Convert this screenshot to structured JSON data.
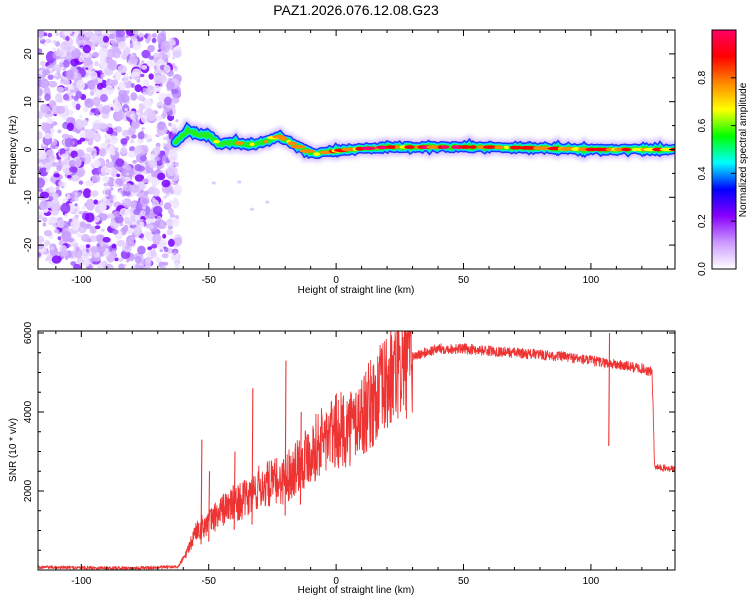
{
  "page_title": "PAZ1.2026.076.12.08.G23",
  "chart_data": [
    {
      "type": "heatmap",
      "title": "PAZ1.2026.076.12.08.G23",
      "xlabel": "Height of straight line (km)",
      "ylabel": "Frequency (Hz)",
      "xlim": [
        -117,
        133
      ],
      "ylim": [
        -25,
        25
      ],
      "x_ticks": [
        -100,
        -50,
        0,
        50,
        100
      ],
      "y_ticks": [
        -20,
        -10,
        0,
        10,
        20
      ],
      "noise_region_x": [
        -117,
        -62
      ],
      "signal_track": [
        {
          "x": -63,
          "f": 1.5,
          "a": 0.3
        },
        {
          "x": -58,
          "f": 4.0,
          "a": 0.5
        },
        {
          "x": -54,
          "f": 3.0,
          "a": 0.55
        },
        {
          "x": -50,
          "f": 3.0,
          "a": 0.6
        },
        {
          "x": -46,
          "f": 1.2,
          "a": 0.6
        },
        {
          "x": -40,
          "f": 1.5,
          "a": 0.65
        },
        {
          "x": -34,
          "f": 1.0,
          "a": 0.7
        },
        {
          "x": -28,
          "f": 1.5,
          "a": 0.75
        },
        {
          "x": -23,
          "f": 2.8,
          "a": 0.85
        },
        {
          "x": -18,
          "f": 1.5,
          "a": 0.75
        },
        {
          "x": -13,
          "f": 0.0,
          "a": 0.8
        },
        {
          "x": -8,
          "f": -1.0,
          "a": 0.8
        },
        {
          "x": -3,
          "f": -0.5,
          "a": 0.85
        },
        {
          "x": 5,
          "f": 0.0,
          "a": 0.9
        },
        {
          "x": 20,
          "f": 0.5,
          "a": 0.9
        },
        {
          "x": 40,
          "f": 0.5,
          "a": 0.9
        },
        {
          "x": 60,
          "f": 0.5,
          "a": 0.9
        },
        {
          "x": 80,
          "f": 0.3,
          "a": 0.9
        },
        {
          "x": 100,
          "f": 0.0,
          "a": 0.88
        },
        {
          "x": 120,
          "f": 0.0,
          "a": 0.85
        },
        {
          "x": 133,
          "f": 0.0,
          "a": 0.8
        }
      ],
      "colorbar": {
        "label": "Normalized spectral amplitude",
        "range": [
          0,
          1
        ],
        "ticks": [
          "0.0",
          "0.2",
          "0.4",
          "0.6",
          "0.8"
        ],
        "colors": [
          "#ffffff",
          "#cc99ff",
          "#8800ff",
          "#0000ff",
          "#00ffff",
          "#00ff00",
          "#ffff00",
          "#ff8800",
          "#ff0000",
          "#ff0066"
        ]
      }
    },
    {
      "type": "line",
      "xlabel": "Height of straight line (km)",
      "ylabel": "SNR (10 * v/v)",
      "xlim": [
        -117,
        133
      ],
      "ylim": [
        0,
        6050
      ],
      "x_ticks": [
        -100,
        -50,
        0,
        50,
        100
      ],
      "y_ticks": [
        2000,
        4000,
        6000
      ],
      "line_color": "#ee3333",
      "envelope": [
        {
          "x": -117,
          "y": 70
        },
        {
          "x": -100,
          "y": 60
        },
        {
          "x": -80,
          "y": 50
        },
        {
          "x": -62,
          "y": 80
        },
        {
          "x": -58,
          "y": 500
        },
        {
          "x": -55,
          "y": 1000
        },
        {
          "x": -50,
          "y": 1200
        },
        {
          "x": -45,
          "y": 1500
        },
        {
          "x": -40,
          "y": 1700
        },
        {
          "x": -35,
          "y": 1800
        },
        {
          "x": -30,
          "y": 2100
        },
        {
          "x": -25,
          "y": 2200
        },
        {
          "x": -20,
          "y": 2300
        },
        {
          "x": -15,
          "y": 2700
        },
        {
          "x": -10,
          "y": 3000
        },
        {
          "x": -5,
          "y": 3300
        },
        {
          "x": 0,
          "y": 3500
        },
        {
          "x": 5,
          "y": 3600
        },
        {
          "x": 10,
          "y": 3900
        },
        {
          "x": 15,
          "y": 4300
        },
        {
          "x": 20,
          "y": 4700
        },
        {
          "x": 25,
          "y": 5100
        },
        {
          "x": 30,
          "y": 5400
        },
        {
          "x": 40,
          "y": 5600
        },
        {
          "x": 50,
          "y": 5600
        },
        {
          "x": 60,
          "y": 5550
        },
        {
          "x": 70,
          "y": 5500
        },
        {
          "x": 80,
          "y": 5450
        },
        {
          "x": 90,
          "y": 5400
        },
        {
          "x": 100,
          "y": 5300
        },
        {
          "x": 110,
          "y": 5200
        },
        {
          "x": 120,
          "y": 5100
        },
        {
          "x": 124,
          "y": 5000
        },
        {
          "x": 125,
          "y": 2600
        },
        {
          "x": 133,
          "y": 2550
        }
      ],
      "spikes": [
        {
          "x": -53,
          "y": 3300
        },
        {
          "x": -50,
          "y": 2500
        },
        {
          "x": -40,
          "y": 3000
        },
        {
          "x": -33,
          "y": 4600
        },
        {
          "x": -20,
          "y": 5300
        },
        {
          "x": -14,
          "y": 4000
        },
        {
          "x": 107,
          "y": 6000
        }
      ]
    }
  ]
}
